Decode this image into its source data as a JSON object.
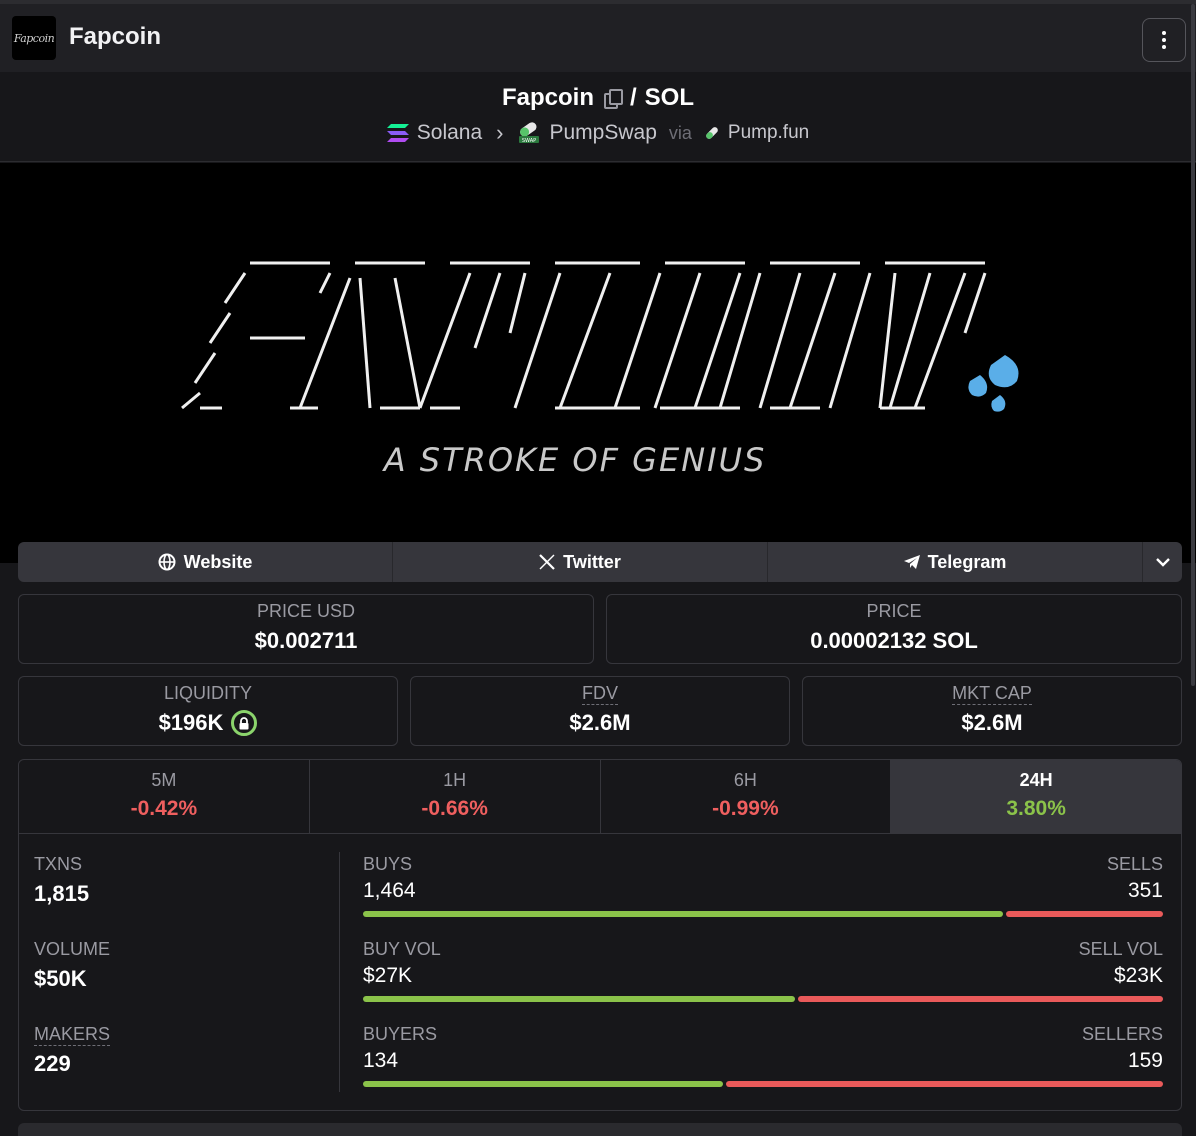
{
  "header": {
    "logo_text": "Fapcoin",
    "title": "Fapcoin"
  },
  "pair": {
    "base": "Fapcoin",
    "separator": "/",
    "quote": "SOL",
    "chain": "Solana",
    "dex": "PumpSwap",
    "via": "via",
    "launchpad": "Pump.fun"
  },
  "banner": {
    "tagline": "A STROKE OF GENIUS"
  },
  "links": {
    "website": "Website",
    "twitter": "Twitter",
    "telegram": "Telegram"
  },
  "price": {
    "usd_label": "PRICE USD",
    "usd_value": "$0.002711",
    "native_label": "PRICE",
    "native_value": "0.00002132 SOL"
  },
  "market": {
    "liquidity_label": "LIQUIDITY",
    "liquidity_value": "$196K",
    "fdv_label": "FDV",
    "fdv_value": "$2.6M",
    "mktcap_label": "MKT CAP",
    "mktcap_value": "$2.6M"
  },
  "timeframes": [
    {
      "label": "5M",
      "value": "-0.42%"
    },
    {
      "label": "1H",
      "value": "-0.66%"
    },
    {
      "label": "6H",
      "value": "-0.99%"
    },
    {
      "label": "24H",
      "value": "3.80%"
    }
  ],
  "stats": {
    "txns_label": "TXNS",
    "txns_value": "1,815",
    "volume_label": "VOLUME",
    "volume_value": "$50K",
    "makers_label": "MAKERS",
    "makers_value": "229",
    "buys_label": "BUYS",
    "buys_value": "1,464",
    "sells_label": "SELLS",
    "sells_value": "351",
    "buyvol_label": "BUY VOL",
    "buyvol_value": "$27K",
    "sellvol_label": "SELL VOL",
    "sellvol_value": "$23K",
    "buyers_label": "BUYERS",
    "buyers_value": "134",
    "sellers_label": "SELLERS",
    "sellers_value": "159"
  },
  "colors": {
    "positive": "#8bc34a",
    "negative": "#ef5f5f",
    "background": "#17171a"
  }
}
